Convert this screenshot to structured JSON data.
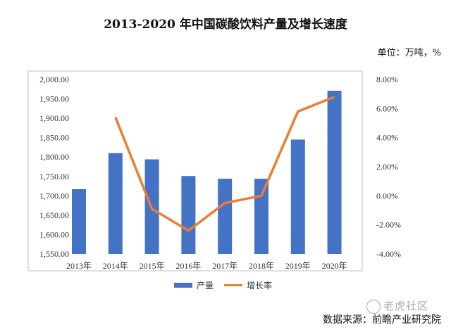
{
  "title": "2013-2020 年中国碳酸饮料产量及增长速度",
  "unit_label": "单位：万吨，%",
  "source_label": "数据来源：前瞻产业研究院",
  "watermark": "老虎社区",
  "colors": {
    "bar": "#4472C4",
    "line": "#ED7D31"
  },
  "chart_data": {
    "type": "bar",
    "categories": [
      "2013年",
      "2014年",
      "2015年",
      "2016年",
      "2017年",
      "2018年",
      "2019年",
      "2020年"
    ],
    "series": [
      {
        "name": "产量",
        "type": "bar",
        "axis": "left",
        "values": [
          1717,
          1810,
          1794,
          1751,
          1744,
          1744,
          1845,
          1971
        ]
      },
      {
        "name": "增长率",
        "type": "line",
        "axis": "right",
        "values": [
          null,
          5.4,
          -0.9,
          -2.4,
          -0.5,
          0.0,
          5.8,
          6.8
        ]
      }
    ],
    "y_left": {
      "min": 1550,
      "max": 2000,
      "ticks": [
        "1,550.00",
        "1,600.00",
        "1,650.00",
        "1,700.00",
        "1,750.00",
        "1,800.00",
        "1,850.00",
        "1,900.00",
        "1,950.00",
        "2,000.00"
      ]
    },
    "y_right": {
      "min": -4,
      "max": 8,
      "ticks": [
        "-4.00%",
        "-2.00%",
        "0.00%",
        "2.00%",
        "4.00%",
        "6.00%",
        "8.00%"
      ]
    },
    "legend_position": "bottom"
  }
}
